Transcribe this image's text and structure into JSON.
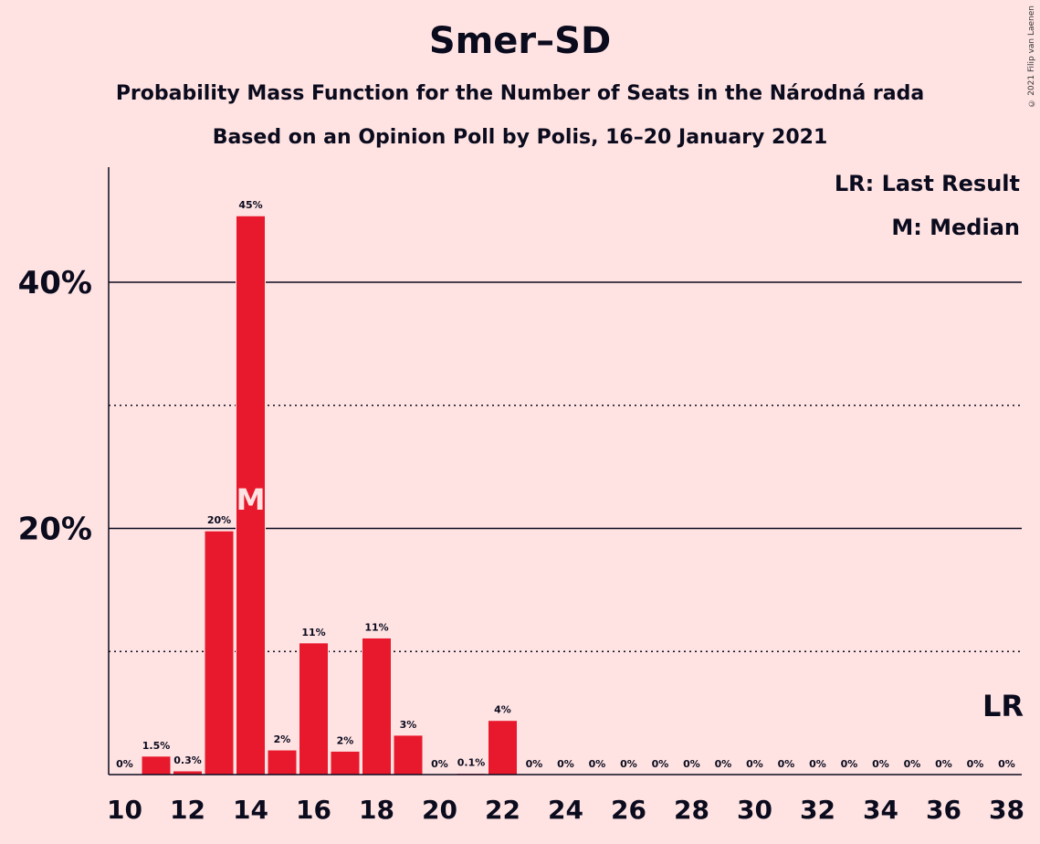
{
  "chart_data": {
    "type": "bar",
    "title": "Smer–SD",
    "subtitle": "Probability Mass Function for the Number of Seats in the Národná rada",
    "subtitle2": "Based on an Opinion Poll by Polis, 16–20 January 2021",
    "x": [
      10,
      11,
      12,
      13,
      14,
      15,
      16,
      17,
      18,
      19,
      20,
      21,
      22,
      23,
      24,
      25,
      26,
      27,
      28,
      29,
      30,
      31,
      32,
      33,
      34,
      35,
      36,
      37,
      38
    ],
    "values": [
      0,
      1.5,
      0.3,
      19.8,
      45.4,
      2.0,
      10.7,
      1.9,
      11.1,
      3.2,
      0,
      0.1,
      4.4,
      0,
      0,
      0,
      0,
      0,
      0,
      0,
      0,
      0,
      0,
      0,
      0,
      0,
      0,
      0,
      0
    ],
    "labels": [
      "0%",
      "1.5%",
      "0.3%",
      "20%",
      "45%",
      "2%",
      "11%",
      "2%",
      "11%",
      "3%",
      "0%",
      "0.1%",
      "4%",
      "0%",
      "0%",
      "0%",
      "0%",
      "0%",
      "0%",
      "0%",
      "0%",
      "0%",
      "0%",
      "0%",
      "0%",
      "0%",
      "0%",
      "0%",
      "0%"
    ],
    "x_tick_labels": [
      "10",
      "12",
      "14",
      "16",
      "18",
      "20",
      "22",
      "24",
      "26",
      "28",
      "30",
      "32",
      "34",
      "36",
      "38"
    ],
    "y_tick_labels": [
      "20%",
      "40%"
    ],
    "ylim": [
      0,
      49.3
    ],
    "major_grid": [
      20,
      40
    ],
    "minor_grid": [
      10,
      30
    ],
    "median_seat": 14,
    "median_marker": "M",
    "last_result_seat": 38,
    "last_result_marker": "LR",
    "legend": [
      "LR: Last Result",
      "M: Median"
    ],
    "legend_position": "top-right",
    "bar_color": "#E8192C",
    "background_color": "#FFE3E3"
  },
  "copyright": "© 2021 Filip van Laenen"
}
